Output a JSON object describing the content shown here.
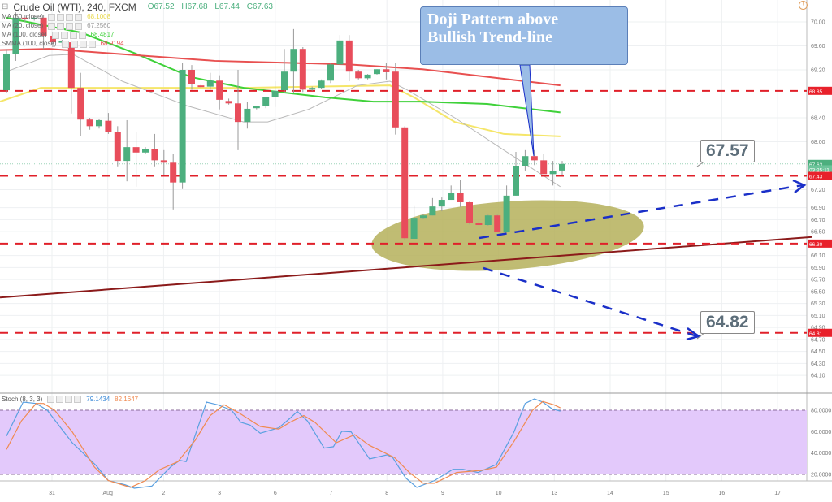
{
  "header": {
    "symbol": "Crude Oil (WTI), 240, FXCM",
    "open": "O67.52",
    "high": "H67.68",
    "low": "L67.44",
    "close": "C67.63"
  },
  "indicators": [
    {
      "label": "MA (50, close)",
      "value": "68.1008",
      "color": "#f5e66a"
    },
    {
      "label": "MA (20, close)",
      "value": "67.2560",
      "color": "#b8b8b8"
    },
    {
      "label": "MA (100, close)",
      "value": "68.4817",
      "color": "#3fd13a"
    },
    {
      "label": "SMMA (100, close)",
      "value": "68.9194",
      "color": "#e85050"
    }
  ],
  "stoch": {
    "label": "Stoch (8, 3, 3)",
    "k_value": "79.1434",
    "d_value": "82.1647",
    "k_color": "#5aa0e0",
    "d_color": "#f08a50",
    "band_color": "#e3c9fb"
  },
  "annotation": {
    "text_line1": "Doji Pattern above",
    "text_line2": "Bullish Trend-line"
  },
  "price_callouts": [
    "67.57",
    "64.82"
  ],
  "price_axis": {
    "ticks": [
      "70.00",
      "69.60",
      "69.20",
      "68.40",
      "68.00",
      "67.20",
      "66.90",
      "66.70",
      "66.50",
      "66.10",
      "65.90",
      "65.70",
      "65.50",
      "65.30",
      "65.10",
      "64.90",
      "64.70",
      "64.50",
      "64.30",
      "64.10"
    ],
    "tags": [
      {
        "text": "68.85",
        "price": 68.85,
        "color": "#e8212b"
      },
      {
        "text": "67.63",
        "price": 67.63,
        "color": "#4caf7e"
      },
      {
        "text": "03:25:11",
        "price": 67.54,
        "color": "#6cc49a"
      },
      {
        "text": "67.43",
        "price": 67.43,
        "color": "#e8212b"
      },
      {
        "text": "66.30",
        "price": 66.3,
        "color": "#e8212b"
      },
      {
        "text": "64.81",
        "price": 64.81,
        "color": "#e8212b"
      }
    ]
  },
  "stoch_axis": {
    "ticks": [
      "80.0000",
      "60.0000",
      "40.0000",
      "20.0000"
    ]
  },
  "time_axis": {
    "labels": [
      "31",
      "Aug",
      "2",
      "3",
      "6",
      "7",
      "8",
      "9",
      "10",
      "13",
      "14",
      "15",
      "16",
      "17"
    ]
  },
  "chart_data": {
    "type": "candlestick",
    "up_color": "#4caf7e",
    "down_color": "#e84d5b",
    "ohlc": [
      [
        68.86,
        69.55,
        68.81,
        69.46
      ],
      [
        69.46,
        70.16,
        69.35,
        70.07
      ],
      [
        70.07,
        70.12,
        70.0,
        70.05
      ],
      [
        70.05,
        70.1,
        70.02,
        70.07
      ],
      [
        70.07,
        70.12,
        69.55,
        69.77
      ],
      [
        69.77,
        69.82,
        69.58,
        69.66
      ],
      [
        69.66,
        69.7,
        69.62,
        69.68
      ],
      [
        69.66,
        69.69,
        68.47,
        68.9
      ],
      [
        68.9,
        69.15,
        68.1,
        68.37
      ],
      [
        68.37,
        68.4,
        68.2,
        68.26
      ],
      [
        68.26,
        68.38,
        68.22,
        68.36
      ],
      [
        68.35,
        68.48,
        68.13,
        68.16
      ],
      [
        68.16,
        68.26,
        67.59,
        67.68
      ],
      [
        67.68,
        68.36,
        67.34,
        67.91
      ],
      [
        67.91,
        68.17,
        67.25,
        67.82
      ],
      [
        67.82,
        67.91,
        67.79,
        67.88
      ],
      [
        67.88,
        68.13,
        67.59,
        67.69
      ],
      [
        67.69,
        67.86,
        67.45,
        67.65
      ],
      [
        67.65,
        67.79,
        66.87,
        67.32
      ],
      [
        67.32,
        69.31,
        67.21,
        69.2
      ],
      [
        69.2,
        69.28,
        68.87,
        68.96
      ],
      [
        68.94,
        68.96,
        68.9,
        68.92
      ],
      [
        68.92,
        69.15,
        68.87,
        69.02
      ],
      [
        69.02,
        69.11,
        68.54,
        68.7
      ],
      [
        68.68,
        68.72,
        68.62,
        68.64
      ],
      [
        68.64,
        69.2,
        67.86,
        68.33
      ],
      [
        68.33,
        68.67,
        68.22,
        68.55
      ],
      [
        68.56,
        68.6,
        68.54,
        68.59
      ],
      [
        68.59,
        68.74,
        68.56,
        68.74
      ],
      [
        68.74,
        69.01,
        68.58,
        68.85
      ],
      [
        68.86,
        69.55,
        68.81,
        69.17
      ],
      [
        69.17,
        69.88,
        68.81,
        69.55
      ],
      [
        69.55,
        69.58,
        68.83,
        68.87
      ],
      [
        68.87,
        68.92,
        68.85,
        68.9
      ],
      [
        68.9,
        69.04,
        68.88,
        69.02
      ],
      [
        69.02,
        69.32,
        68.98,
        69.29
      ],
      [
        69.29,
        69.78,
        69.28,
        69.69
      ],
      [
        69.69,
        69.78,
        69.01,
        69.17
      ],
      [
        69.17,
        69.2,
        69.04,
        69.06
      ],
      [
        69.06,
        69.13,
        69.04,
        69.12
      ],
      [
        69.13,
        69.21,
        69.12,
        69.21
      ],
      [
        69.21,
        69.31,
        69.04,
        69.16
      ],
      [
        69.17,
        69.32,
        68.12,
        68.24
      ],
      [
        68.24,
        68.26,
        66.35,
        66.39
      ],
      [
        66.38,
        66.94,
        66.38,
        66.73
      ],
      [
        66.73,
        66.8,
        66.72,
        66.77
      ],
      [
        66.77,
        67.06,
        66.77,
        66.92
      ],
      [
        66.92,
        67.07,
        66.84,
        67.03
      ],
      [
        67.03,
        67.27,
        67.03,
        67.14
      ],
      [
        67.14,
        67.36,
        66.91,
        66.99
      ],
      [
        66.99,
        67.0,
        66.62,
        66.65
      ],
      [
        66.65,
        66.67,
        66.6,
        66.61
      ],
      [
        66.61,
        66.78,
        66.6,
        66.77
      ],
      [
        66.77,
        66.78,
        66.5,
        66.5
      ],
      [
        66.5,
        67.27,
        66.5,
        67.1
      ],
      [
        67.1,
        67.83,
        67.1,
        67.6
      ],
      [
        67.6,
        67.86,
        67.52,
        67.76
      ],
      [
        67.76,
        67.86,
        67.61,
        67.69
      ],
      [
        67.69,
        67.79,
        67.46,
        67.46
      ],
      [
        67.46,
        67.68,
        67.27,
        67.51
      ],
      [
        67.52,
        67.68,
        67.44,
        67.63
      ]
    ],
    "moving_averages": [
      {
        "name": "MA (50, close)",
        "points": [
          [
            -0.7,
            68.67
          ],
          [
            3.7,
            68.9
          ],
          [
            16.8,
            68.9
          ],
          [
            25.6,
            68.9
          ],
          [
            41.4,
            68.94
          ],
          [
            44.0,
            68.74
          ],
          [
            48.4,
            68.33
          ],
          [
            53.7,
            68.13
          ],
          [
            59.8,
            68.09
          ]
        ]
      },
      {
        "name": "MA (20, close)",
        "points": [
          [
            0,
            69.17
          ],
          [
            4.6,
            69.44
          ],
          [
            7.2,
            69.46
          ],
          [
            12.5,
            69.01
          ],
          [
            19.5,
            68.6
          ],
          [
            25.6,
            68.33
          ],
          [
            28.2,
            68.33
          ],
          [
            32.6,
            68.54
          ],
          [
            37.9,
            68.94
          ],
          [
            41.4,
            69.01
          ],
          [
            43.2,
            68.87
          ],
          [
            48.4,
            68.4
          ],
          [
            53.7,
            67.86
          ],
          [
            59.8,
            67.25
          ]
        ]
      },
      {
        "name": "MA (100, close)",
        "points": [
          [
            0,
            70.07
          ],
          [
            8.1,
            69.82
          ],
          [
            13.8,
            69.48
          ],
          [
            19.9,
            69.08
          ],
          [
            25.6,
            68.9
          ],
          [
            34.4,
            68.74
          ],
          [
            39.6,
            68.67
          ],
          [
            44.9,
            68.67
          ],
          [
            51.9,
            68.63
          ],
          [
            59.8,
            68.49
          ]
        ]
      },
      {
        "name": "SMMA (100, close)",
        "points": [
          [
            -0.7,
            69.53
          ],
          [
            4.6,
            69.55
          ],
          [
            22.5,
            69.35
          ],
          [
            37.0,
            69.29
          ],
          [
            44.9,
            69.21
          ],
          [
            59.8,
            68.94
          ]
        ]
      }
    ],
    "horizontal_levels": [
      68.85,
      67.43,
      66.3,
      64.81
    ],
    "trendline": [
      [
        -0.7,
        65.4
      ],
      [
        87.0,
        66.41
      ]
    ],
    "stoch_k": [
      [
        0,
        55.9
      ],
      [
        1.8,
        87.6
      ],
      [
        3.2,
        86.3
      ],
      [
        4.4,
        80.0
      ],
      [
        7.1,
        49.6
      ],
      [
        9.7,
        28.1
      ],
      [
        11.0,
        14.2
      ],
      [
        12.8,
        10.4
      ],
      [
        13.8,
        7.1
      ],
      [
        15.7,
        9.1
      ],
      [
        17.7,
        26.8
      ],
      [
        18.7,
        33.2
      ],
      [
        19.4,
        31.9
      ],
      [
        21.6,
        87.6
      ],
      [
        22.8,
        85.1
      ],
      [
        24.3,
        80.0
      ],
      [
        25.3,
        68.7
      ],
      [
        26.3,
        66.1
      ],
      [
        27.4,
        58.5
      ],
      [
        29.4,
        63.6
      ],
      [
        30.6,
        72.4
      ],
      [
        31.4,
        78.8
      ],
      [
        32.5,
        69.9
      ],
      [
        34.3,
        44.6
      ],
      [
        35.3,
        45.9
      ],
      [
        36.2,
        60.3
      ],
      [
        37.2,
        59.8
      ],
      [
        39.2,
        34.5
      ],
      [
        41.1,
        38.3
      ],
      [
        41.7,
        35.7
      ],
      [
        43.1,
        16.7
      ],
      [
        44.3,
        7.9
      ],
      [
        46.2,
        14.2
      ],
      [
        48.2,
        24.8
      ],
      [
        49.3,
        24.8
      ],
      [
        50.9,
        21.8
      ],
      [
        52.9,
        29.4
      ],
      [
        54.8,
        59.8
      ],
      [
        56.0,
        86.3
      ],
      [
        57.0,
        90.6
      ],
      [
        57.9,
        87.6
      ],
      [
        58.9,
        81.3
      ],
      [
        59.8,
        79.1
      ]
    ],
    "stoch_d": [
      [
        0,
        43.3
      ],
      [
        1.6,
        69.9
      ],
      [
        3.2,
        86.3
      ],
      [
        4.0,
        86.3
      ],
      [
        5.2,
        80.0
      ],
      [
        7.1,
        59.8
      ],
      [
        9.5,
        26.8
      ],
      [
        11.0,
        14.2
      ],
      [
        13.4,
        7.9
      ],
      [
        15.0,
        14.2
      ],
      [
        16.5,
        24.3
      ],
      [
        18.5,
        31.9
      ],
      [
        20.4,
        52.2
      ],
      [
        22.0,
        75.0
      ],
      [
        23.5,
        85.1
      ],
      [
        25.1,
        77.5
      ],
      [
        27.4,
        64.8
      ],
      [
        29.4,
        62.3
      ],
      [
        30.6,
        68.7
      ],
      [
        32.1,
        75.0
      ],
      [
        33.3,
        68.7
      ],
      [
        35.6,
        49.6
      ],
      [
        37.6,
        57.2
      ],
      [
        39.2,
        47.1
      ],
      [
        41.9,
        35.7
      ],
      [
        43.5,
        21.8
      ],
      [
        45.0,
        11.7
      ],
      [
        46.2,
        11.7
      ],
      [
        48.6,
        21.8
      ],
      [
        51.3,
        23.8
      ],
      [
        52.9,
        26.8
      ],
      [
        54.8,
        50.9
      ],
      [
        56.8,
        80.0
      ],
      [
        57.9,
        88.1
      ],
      [
        59.1,
        85.1
      ],
      [
        59.8,
        82.2
      ]
    ],
    "stoch_bands": [
      20,
      80
    ]
  }
}
